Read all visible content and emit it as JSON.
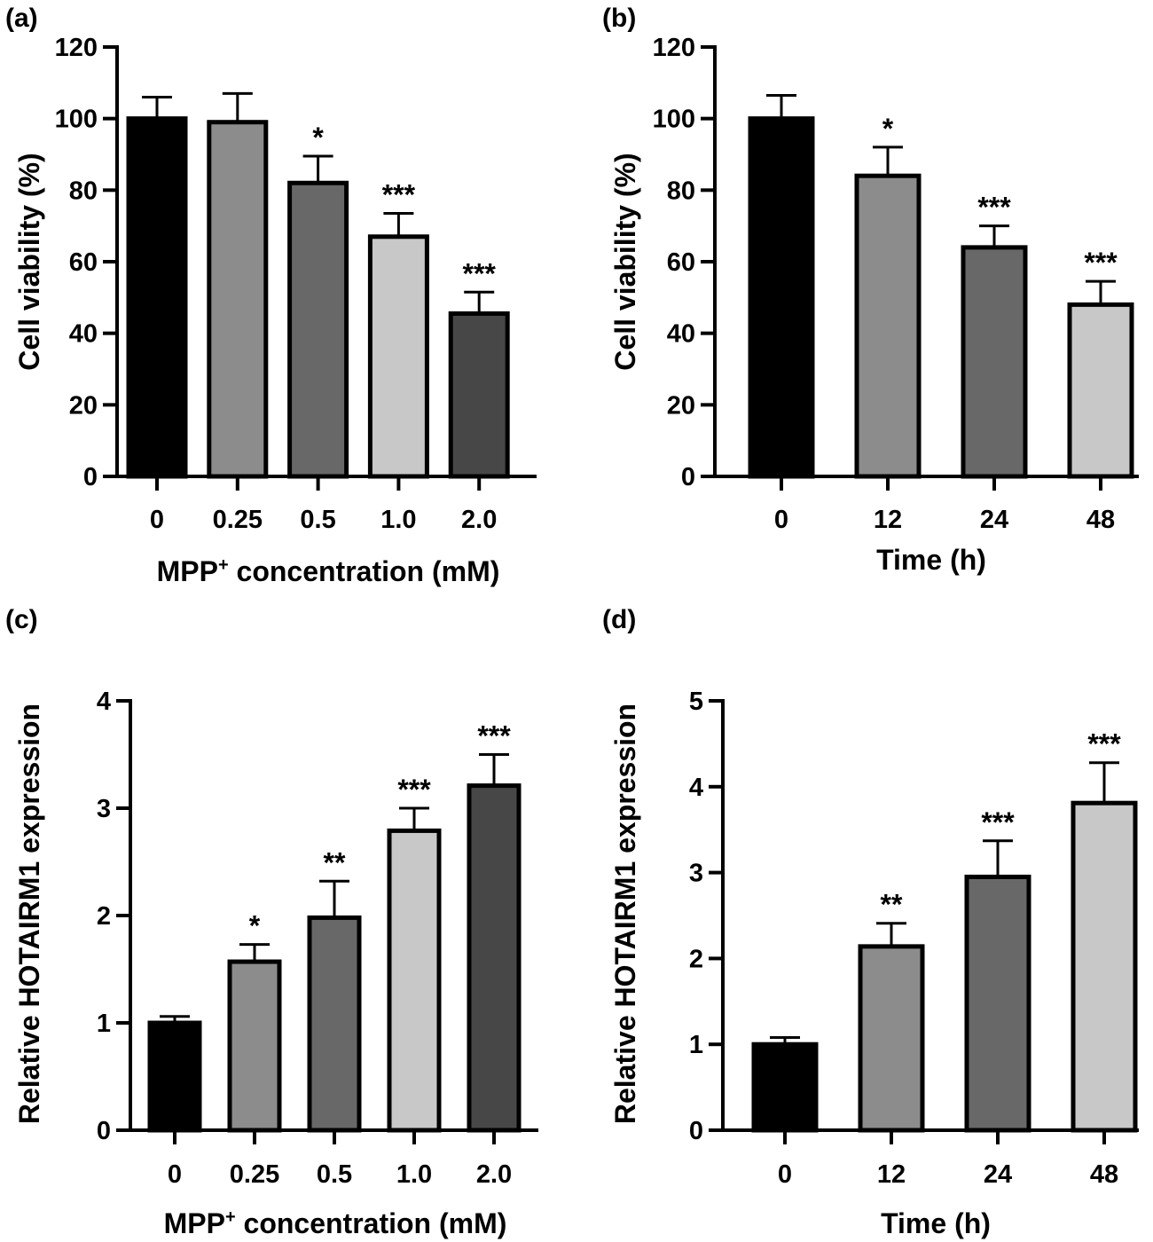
{
  "chart_data": [
    {
      "panel": "(a)",
      "type": "bar",
      "categories": [
        "0",
        "0.25",
        "0.5",
        "1.0",
        "2.0"
      ],
      "values": [
        100,
        99,
        82,
        67,
        45.5
      ],
      "errors": [
        6,
        8,
        7.5,
        6.5,
        6
      ],
      "significance": [
        "",
        "",
        "*",
        "***",
        "***"
      ],
      "colors": [
        "#000000",
        "#8c8c8c",
        "#686868",
        "#c8c8c8",
        "#474747"
      ],
      "ylim": [
        0,
        120
      ],
      "yticks": [
        "0",
        "20",
        "40",
        "60",
        "80",
        "100",
        "120"
      ],
      "ylabel": "Cell viability (%)",
      "xlabel_main": "MPP",
      "xlabel_sup": "+",
      "xlabel_rest": " concentration (mM)"
    },
    {
      "panel": "(b)",
      "type": "bar",
      "categories": [
        "0",
        "12",
        "24",
        "48"
      ],
      "values": [
        100,
        84,
        64,
        48
      ],
      "errors": [
        6.5,
        8,
        6,
        6.5
      ],
      "significance": [
        "",
        "*",
        "***",
        "***"
      ],
      "colors": [
        "#000000",
        "#8c8c8c",
        "#686868",
        "#c8c8c8"
      ],
      "ylim": [
        0,
        120
      ],
      "yticks": [
        "0",
        "20",
        "40",
        "60",
        "80",
        "100",
        "120"
      ],
      "ylabel": "Cell viability (%)",
      "xlabel_main": "Time (h)",
      "xlabel_sup": "",
      "xlabel_rest": ""
    },
    {
      "panel": "(c)",
      "type": "bar",
      "categories": [
        "0",
        "0.25",
        "0.5",
        "1.0",
        "2.0"
      ],
      "values": [
        1.0,
        1.57,
        1.98,
        2.79,
        3.21
      ],
      "errors": [
        0.06,
        0.16,
        0.34,
        0.21,
        0.29
      ],
      "significance": [
        "",
        "*",
        "**",
        "***",
        "***"
      ],
      "colors": [
        "#000000",
        "#8c8c8c",
        "#686868",
        "#c8c8c8",
        "#474747"
      ],
      "ylim": [
        0,
        4
      ],
      "yticks": [
        "0",
        "1",
        "2",
        "3",
        "4"
      ],
      "ylabel": "Relative HOTAIRM1 expression",
      "xlabel_main": "MPP",
      "xlabel_sup": "+",
      "xlabel_rest": " concentration (mM)"
    },
    {
      "panel": "(d)",
      "type": "bar",
      "categories": [
        "0",
        "12",
        "24",
        "48"
      ],
      "values": [
        1.0,
        2.14,
        2.95,
        3.81
      ],
      "errors": [
        0.08,
        0.27,
        0.42,
        0.47
      ],
      "significance": [
        "",
        "**",
        "***",
        "***"
      ],
      "colors": [
        "#000000",
        "#8c8c8c",
        "#686868",
        "#c8c8c8"
      ],
      "ylim": [
        0,
        5
      ],
      "yticks": [
        "0",
        "1",
        "2",
        "3",
        "4",
        "5"
      ],
      "ylabel": "Relative HOTAIRM1 expression",
      "xlabel_main": "Time (h)",
      "xlabel_sup": "",
      "xlabel_rest": ""
    }
  ]
}
